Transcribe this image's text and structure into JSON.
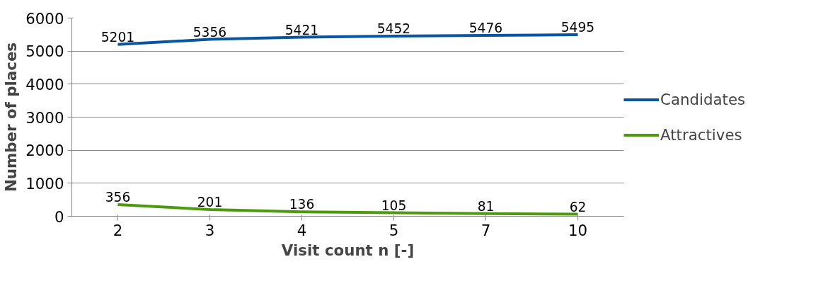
{
  "chart_data": {
    "type": "line",
    "xlabel": "Visit count n [-]",
    "ylabel": "Number of places",
    "categories": [
      "2",
      "3",
      "4",
      "5",
      "7",
      "10"
    ],
    "series": [
      {
        "name": "Candidates",
        "color": "#0a55a2",
        "values": [
          5201,
          5356,
          5421,
          5452,
          5476,
          5495
        ]
      },
      {
        "name": "Attractives",
        "color": "#4e9a0e",
        "values": [
          356,
          201,
          136,
          105,
          81,
          62
        ]
      }
    ],
    "ylim": [
      0,
      6000
    ],
    "yticks": [
      0,
      1000,
      2000,
      3000,
      4000,
      5000,
      6000
    ],
    "grid": "y",
    "legend": "right",
    "data_labels": true,
    "marker": "none",
    "line_style": "solid"
  }
}
